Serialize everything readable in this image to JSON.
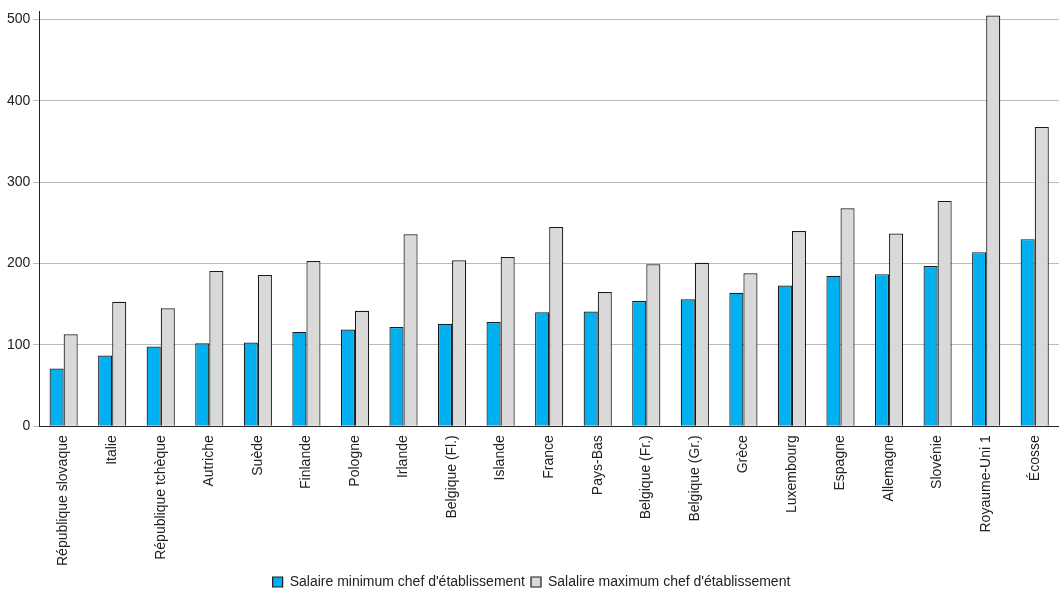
{
  "chart_data": {
    "type": "bar",
    "categories": [
      "République slovaque",
      "Italie",
      "République tchèque",
      "Autriche",
      "Suède",
      "Finlande",
      "Pologne",
      "Irlande",
      "Belgique (Fl.)",
      "Islande",
      "France",
      "Pays-Bas",
      "Belgique (Fr.)",
      "Belgique (Gr.)",
      "Grèce",
      "Luxembourg",
      "Espagne",
      "Allemagne",
      "Slovénie",
      "Royaume-Uni 1",
      "Écosse"
    ],
    "series": [
      {
        "name": "Salaire minimum chef d'établissement",
        "color": "#00b0f0",
        "values": [
          71,
          87,
          98,
          102,
          103,
          116,
          119,
          122,
          126,
          128,
          140,
          141,
          154,
          156,
          164,
          173,
          185,
          187,
          197,
          214,
          230
        ]
      },
      {
        "name": "Salalire maximum chef d'établissement",
        "color": "#d9d9d9",
        "values": [
          113,
          153,
          145,
          191,
          186,
          203,
          142,
          236,
          204,
          208,
          245,
          165,
          199,
          201,
          188,
          240,
          268,
          237,
          277,
          505,
          368
        ]
      }
    ],
    "ylim": [
      0,
      510
    ],
    "yticks": [
      0,
      100,
      200,
      300,
      400,
      500
    ],
    "grid": "y",
    "legend": "bottom"
  }
}
